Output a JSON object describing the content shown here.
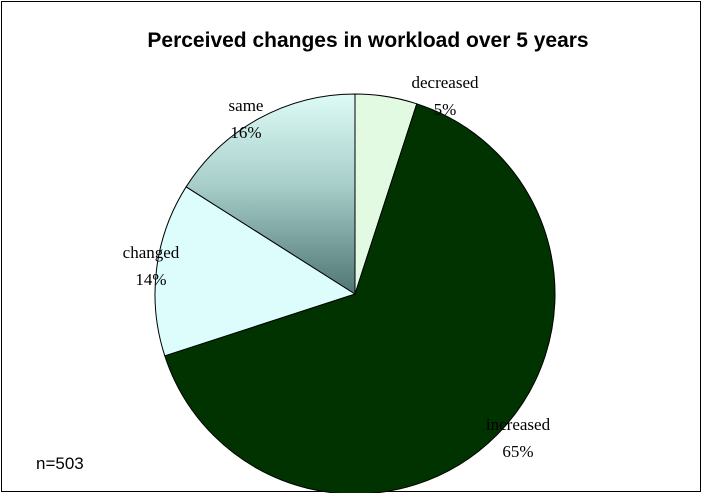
{
  "chart_data": {
    "type": "pie",
    "title": "Perceived changes in workload over 5 years",
    "slices": [
      {
        "label": "decreased",
        "value": 5,
        "value_label": "5%",
        "color": "#e1fae1"
      },
      {
        "label": "increased",
        "value": 65,
        "value_label": "65%",
        "color": "#003300"
      },
      {
        "label": "changed",
        "value": 14,
        "value_label": "14%",
        "color": "#ddfdfd"
      },
      {
        "label": "same",
        "value": 16,
        "value_label": "16%",
        "color": "#9ec9c9"
      }
    ],
    "start_angle_deg": 0,
    "direction": "clockwise",
    "legend": "none",
    "note": "n=503"
  }
}
